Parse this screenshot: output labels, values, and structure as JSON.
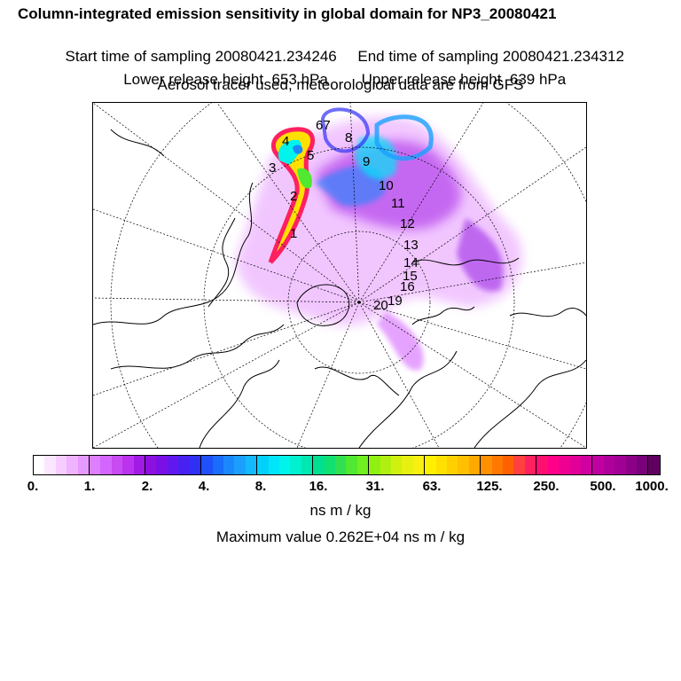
{
  "header": {
    "title": "Column-integrated emission sensitivity in global domain for NP3_20080421",
    "start_time": "Start time of sampling 20080421.234246",
    "end_time": "End time of sampling 20080421.234312",
    "lower_release": "Lower release height  653 hPa",
    "upper_release": "Upper release height  639 hPa",
    "tracer_note": "Aerosol tracer used, meteorological data are from GFS"
  },
  "map": {
    "trajectory_labels": [
      "1",
      "2",
      "3",
      "4",
      "5",
      "67",
      "8",
      "9",
      "10",
      "11",
      "12",
      "13",
      "14",
      "15",
      "16",
      "20",
      "19"
    ]
  },
  "colorbar": {
    "ticks": [
      "0.",
      "1.",
      "2.",
      "4.",
      "8.",
      "16.",
      "31.",
      "63.",
      "125.",
      "250.",
      "500.",
      "1000."
    ],
    "colors": [
      "#ffffff",
      "#fbe6ff",
      "#f7ccff",
      "#efb3ff",
      "#e699ff",
      "#dd80ff",
      "#d466ff",
      "#c84cf2",
      "#bb33ee",
      "#a21ae6",
      "#8c10e0",
      "#7a0fe6",
      "#6018ee",
      "#4820f2",
      "#3030f5",
      "#2050f8",
      "#1a6cfa",
      "#1a88fc",
      "#1aa0fc",
      "#14b8fc",
      "#00d0fc",
      "#00e6f8",
      "#00f4ec",
      "#00f0d0",
      "#00e8b0",
      "#00e090",
      "#10e070",
      "#30e050",
      "#50e830",
      "#70f020",
      "#90f010",
      "#b0f010",
      "#d0f010",
      "#e8f010",
      "#f8f010",
      "#fff000",
      "#ffe000",
      "#ffd000",
      "#ffc000",
      "#ffa800",
      "#ff9000",
      "#ff7800",
      "#ff6000",
      "#ff4040",
      "#ff2060",
      "#ff1070",
      "#ff0088",
      "#f00090",
      "#e00098",
      "#d000a0",
      "#c000a0",
      "#b0009c",
      "#a00094",
      "#8c0088",
      "#780078",
      "#600060"
    ]
  },
  "units": "ns m / kg",
  "max_value": "Maximum value  0.262E+04 ns m / kg"
}
